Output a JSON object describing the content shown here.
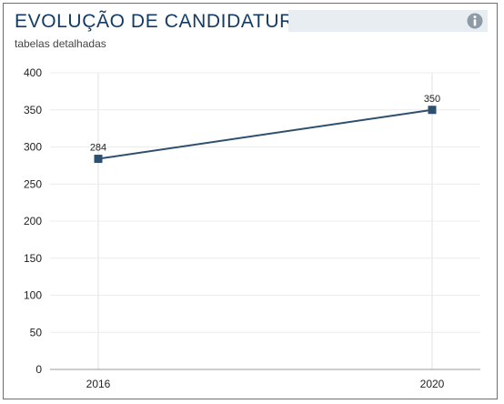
{
  "header": {
    "title": "EVOLUÇÃO DE CANDIDATURAS",
    "subtitle": "tabelas detalhadas",
    "info_icon": "info-icon"
  },
  "colors": {
    "title": "#143b64",
    "series": "#2f4f6f",
    "title_bar": "#e8edf2",
    "grid": "#ececec"
  },
  "chart_data": {
    "type": "line",
    "title": "EVOLUÇÃO DE CANDIDATURAS",
    "subtitle": "tabelas detalhadas",
    "xlabel": "",
    "ylabel": "",
    "categories": [
      "2016",
      "2020"
    ],
    "series": [
      {
        "values": [
          284,
          350
        ],
        "data_labels": [
          "284",
          "350"
        ]
      }
    ],
    "ylim": [
      0,
      400
    ],
    "y_ticks": [
      "0",
      "50",
      "100",
      "150",
      "200",
      "250",
      "300",
      "350",
      "400"
    ],
    "grid": true,
    "legend": "none"
  }
}
